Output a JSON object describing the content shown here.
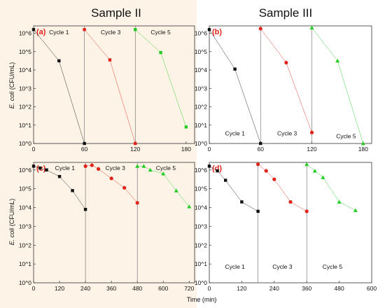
{
  "figure": {
    "col_titles": [
      "Sample II",
      "Sample III"
    ],
    "ylabel_species": "E. coli",
    "ylabel_unit": " (CFU/mL)",
    "xlabel": "Time (min)",
    "colors": {
      "left_bg": "#fdf3e6",
      "cycle1": "#111111",
      "cycle3": "#e0241b",
      "cycle5": "#22cc22",
      "panel_label": "#e0241b"
    }
  },
  "chart_data": [
    {
      "id": "a",
      "panel_label": "(a)",
      "type": "line",
      "x_ticks": [
        "0",
        "60",
        "120",
        "180"
      ],
      "x_tick_values": [
        0,
        60,
        120,
        180
      ],
      "xlim": [
        0,
        190
      ],
      "y_ticks": [
        "10^0",
        "10^1",
        "10^2",
        "10^3",
        "10^4",
        "10^5",
        "10^6"
      ],
      "ylim_log10": [
        0,
        6.4
      ],
      "y_scale": "log",
      "separators": [
        60,
        120
      ],
      "cycle_labels": [
        {
          "text": "Cycle 1",
          "x": 30,
          "y_log": 6.05
        },
        {
          "text": "Cycle 3",
          "x": 91,
          "y_log": 6.05
        },
        {
          "text": "Cycle 5",
          "x": 150,
          "y_log": 6.05
        }
      ],
      "series": [
        {
          "cycle": "cycle1",
          "marker": "square",
          "x": [
            0,
            30,
            60
          ],
          "y_log": [
            6.2,
            4.5,
            0
          ]
        },
        {
          "cycle": "cycle3",
          "marker": "square",
          "x": [
            60,
            90,
            120
          ],
          "y_log": [
            6.2,
            4.55,
            0
          ]
        },
        {
          "cycle": "cycle5",
          "marker": "square",
          "x": [
            120,
            150,
            180
          ],
          "y_log": [
            6.2,
            4.95,
            0.9
          ]
        }
      ]
    },
    {
      "id": "b",
      "panel_label": "(b)",
      "type": "line",
      "x_ticks": [
        "0",
        "60",
        "120",
        "180"
      ],
      "x_tick_values": [
        0,
        60,
        120,
        180
      ],
      "xlim": [
        0,
        190
      ],
      "y_ticks": [
        "10^0",
        "10^1",
        "10^2",
        "10^3",
        "10^4",
        "10^5",
        "10^6"
      ],
      "ylim_log10": [
        0,
        6.4
      ],
      "y_scale": "log",
      "separators": [
        60,
        120
      ],
      "cycle_labels": [
        {
          "text": "Cycle 1",
          "x": 30,
          "y_log": 0.55
        },
        {
          "text": "Cycle 3",
          "x": 91,
          "y_log": 0.55
        },
        {
          "text": "Cycle 5",
          "x": 160,
          "y_log": 0.4
        }
      ],
      "series": [
        {
          "cycle": "cycle1",
          "marker": "square",
          "x": [
            0,
            30,
            60
          ],
          "y_log": [
            6.2,
            4.05,
            0
          ]
        },
        {
          "cycle": "cycle3",
          "marker": "circle",
          "x": [
            60,
            90,
            120
          ],
          "y_log": [
            6.25,
            4.4,
            0.6
          ]
        },
        {
          "cycle": "cycle5",
          "marker": "triangle",
          "x": [
            120,
            150,
            180
          ],
          "y_log": [
            6.3,
            4.5,
            0
          ]
        }
      ]
    },
    {
      "id": "c",
      "panel_label": "(c)",
      "type": "line",
      "x_ticks": [
        "0",
        "120",
        "240",
        "360",
        "480",
        "600",
        "720"
      ],
      "x_tick_values": [
        0,
        120,
        240,
        360,
        480,
        600,
        720
      ],
      "xlim": [
        0,
        745
      ],
      "y_ticks": [
        "10^0",
        "10^1",
        "10^2",
        "10^3",
        "10^4",
        "10^5",
        "10^6"
      ],
      "ylim_log10": [
        0,
        6.4
      ],
      "y_scale": "log",
      "separators": [
        240,
        480
      ],
      "cycle_labels": [
        {
          "text": "Cycle 1",
          "x": 145,
          "y_log": 6.1
        },
        {
          "text": "Cycle 3",
          "x": 378,
          "y_log": 6.1
        },
        {
          "text": "Cycle 5",
          "x": 612,
          "y_log": 6.1
        }
      ],
      "series": [
        {
          "cycle": "cycle1",
          "marker": "square",
          "x": [
            0,
            30,
            60,
            120,
            180,
            240
          ],
          "y_log": [
            6.2,
            6.1,
            6.0,
            5.65,
            4.9,
            3.9
          ]
        },
        {
          "cycle": "cycle3",
          "marker": "circle",
          "x": [
            240,
            270,
            300,
            360,
            420,
            480
          ],
          "y_log": [
            6.2,
            6.25,
            6.05,
            5.55,
            5.05,
            4.25
          ]
        },
        {
          "cycle": "cycle5",
          "marker": "triangle",
          "x": [
            480,
            510,
            540,
            600,
            660,
            720
          ],
          "y_log": [
            6.2,
            6.2,
            6.0,
            5.8,
            4.9,
            4.05
          ]
        }
      ]
    },
    {
      "id": "d",
      "panel_label": "(d)",
      "type": "line",
      "x_ticks": [
        "0",
        "120",
        "240",
        "360",
        "480",
        "600"
      ],
      "x_tick_values": [
        0,
        120,
        240,
        360,
        480,
        600
      ],
      "xlim": [
        0,
        600
      ],
      "y_ticks": [
        "10^0",
        "10^1",
        "10^2",
        "10^3",
        "10^4",
        "10^5",
        "10^6"
      ],
      "ylim_log10": [
        0,
        6.4
      ],
      "y_scale": "log",
      "separators": [
        180,
        360
      ],
      "cycle_labels": [
        {
          "text": "Cycle 1",
          "x": 95,
          "y_log": 0.85
        },
        {
          "text": "Cycle 3",
          "x": 270,
          "y_log": 0.85
        },
        {
          "text": "Cycle 5",
          "x": 455,
          "y_log": 0.85
        }
      ],
      "series": [
        {
          "cycle": "cycle1",
          "marker": "square",
          "x": [
            0,
            30,
            60,
            120,
            180
          ],
          "y_log": [
            6.2,
            5.95,
            5.45,
            4.3,
            3.8
          ]
        },
        {
          "cycle": "cycle3",
          "marker": "circle",
          "x": [
            180,
            210,
            240,
            300,
            360
          ],
          "y_log": [
            6.3,
            5.95,
            5.5,
            4.3,
            3.8
          ]
        },
        {
          "cycle": "cycle5",
          "marker": "triangle",
          "x": [
            360,
            390,
            420,
            480,
            540
          ],
          "y_log": [
            6.3,
            5.95,
            5.6,
            4.3,
            3.85
          ]
        }
      ]
    }
  ]
}
